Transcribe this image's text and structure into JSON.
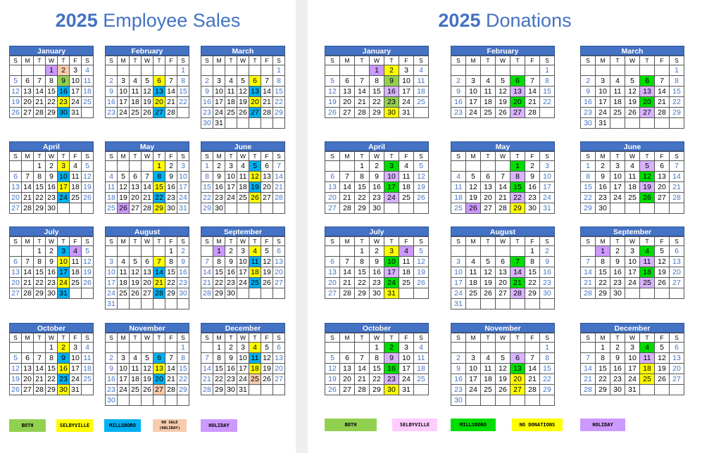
{
  "colors": {
    "both": "#92d050",
    "selbyville": "#ffff00",
    "millsboro": "#00b0f0",
    "no_sale": "#f8cbad",
    "holiday": "#cc99ff",
    "donation_green": "#00dd00",
    "donation_pink": "#ffccff",
    "lavender": "#d9b3ff",
    "header_blue": "#4472c4"
  },
  "weekday_letters": [
    "S",
    "M",
    "T",
    "W",
    "T",
    "F",
    "S"
  ],
  "left": {
    "title_year": "2025",
    "title_text": "Employee Sales",
    "legend": [
      {
        "label": "BOTH",
        "color": "#92d050"
      },
      {
        "label": "SELBYVILLE",
        "color": "#ffff00"
      },
      {
        "label": "MILLSBORO",
        "color": "#00b0f0"
      },
      {
        "label": "NO SALE (HOLIDAY)",
        "color": "#f8cbad"
      },
      {
        "label": "HOLIDAY",
        "color": "#cc99ff"
      }
    ],
    "months": [
      {
        "name": "January",
        "start": 3,
        "days": 31,
        "hl": {
          "1": "hol",
          "2": "ns",
          "9": "both",
          "16": "mil",
          "23": "sel",
          "30": "mil"
        }
      },
      {
        "name": "February",
        "start": 6,
        "days": 28,
        "hl": {
          "6": "sel",
          "13": "mil",
          "20": "sel",
          "27": "mil"
        }
      },
      {
        "name": "March",
        "start": 6,
        "days": 31,
        "hl": {
          "6": "sel",
          "13": "mil",
          "20": "sel",
          "27": "mil"
        }
      },
      {
        "name": "April",
        "start": 2,
        "days": 30,
        "hl": {
          "3": "sel",
          "10": "mil",
          "17": "sel",
          "24": "mil"
        }
      },
      {
        "name": "May",
        "start": 4,
        "days": 31,
        "hl": {
          "1": "sel",
          "8": "mil",
          "15": "sel",
          "22": "mil",
          "26": "hol",
          "29": "sel"
        }
      },
      {
        "name": "June",
        "start": 0,
        "days": 30,
        "hl": {
          "5": "mil",
          "12": "sel",
          "19": "mil",
          "26": "sel"
        }
      },
      {
        "name": "July",
        "start": 2,
        "days": 31,
        "hl": {
          "3": "mil",
          "4": "hol",
          "10": "sel",
          "17": "mil",
          "24": "sel",
          "31": "mil"
        }
      },
      {
        "name": "August",
        "start": 5,
        "days": 31,
        "hl": {
          "7": "sel",
          "14": "mil",
          "21": "sel",
          "28": "mil"
        }
      },
      {
        "name": "September",
        "start": 1,
        "days": 30,
        "hl": {
          "1": "hol",
          "4": "sel",
          "11": "mil",
          "18": "sel",
          "25": "mil"
        }
      },
      {
        "name": "October",
        "start": 3,
        "days": 31,
        "hl": {
          "2": "sel",
          "9": "mil",
          "16": "sel",
          "23": "mil",
          "30": "sel"
        }
      },
      {
        "name": "November",
        "start": 6,
        "days": 30,
        "hl": {
          "6": "mil",
          "13": "sel",
          "20": "mil",
          "27": "ns"
        }
      },
      {
        "name": "December",
        "start": 1,
        "days": 31,
        "hl": {
          "4": "sel",
          "11": "mil",
          "18": "sel",
          "25": "ns"
        }
      }
    ]
  },
  "right": {
    "title_year": "2025",
    "title_text": "Donations",
    "legend": [
      {
        "label": "BOTH",
        "color": "#92d050"
      },
      {
        "label": "SELBYVILLE",
        "color": "#ffccff"
      },
      {
        "label": "MILLSBORO",
        "color": "#00dd00"
      },
      {
        "label": "NO DONATIONS",
        "color": "#ffff00"
      },
      {
        "label": "HOLIDAY",
        "color": "#cc99ff"
      }
    ],
    "months": [
      {
        "name": "January",
        "start": 3,
        "days": 31,
        "hl": {
          "1": "hol",
          "2": "sel",
          "9": "both",
          "16": "lav",
          "23": "both",
          "30": "sel"
        }
      },
      {
        "name": "February",
        "start": 6,
        "days": 28,
        "hl": {
          "6": "dg",
          "13": "lav",
          "20": "dg",
          "27": "lav"
        }
      },
      {
        "name": "March",
        "start": 6,
        "days": 31,
        "hl": {
          "6": "dg",
          "13": "lav",
          "20": "dg",
          "27": "lav"
        }
      },
      {
        "name": "April",
        "start": 2,
        "days": 30,
        "hl": {
          "3": "dg",
          "10": "lav",
          "17": "dg",
          "24": "lav"
        }
      },
      {
        "name": "May",
        "start": 4,
        "days": 31,
        "hl": {
          "1": "dg",
          "8": "lav",
          "15": "dg",
          "22": "lav",
          "26": "hol",
          "29": "sel"
        }
      },
      {
        "name": "June",
        "start": 0,
        "days": 30,
        "hl": {
          "5": "lav",
          "12": "dg",
          "19": "lav",
          "26": "dg"
        }
      },
      {
        "name": "July",
        "start": 2,
        "days": 31,
        "hl": {
          "3": "sel",
          "4": "hol",
          "10": "dg",
          "17": "lav",
          "24": "dg",
          "31": "sel"
        }
      },
      {
        "name": "August",
        "start": 5,
        "days": 31,
        "hl": {
          "7": "dg",
          "14": "lav",
          "21": "dg",
          "28": "lav"
        }
      },
      {
        "name": "September",
        "start": 1,
        "days": 30,
        "hl": {
          "1": "hol",
          "4": "dg",
          "11": "lav",
          "18": "dg",
          "25": "lav"
        }
      },
      {
        "name": "October",
        "start": 3,
        "days": 31,
        "hl": {
          "2": "dg",
          "9": "lav",
          "16": "dg",
          "23": "lav",
          "30": "sel"
        }
      },
      {
        "name": "November",
        "start": 6,
        "days": 30,
        "hl": {
          "6": "lav",
          "13": "dg",
          "20": "sel",
          "27": "sel"
        }
      },
      {
        "name": "December",
        "start": 1,
        "days": 31,
        "hl": {
          "4": "dg",
          "11": "lav",
          "18": "sel",
          "25": "sel"
        }
      }
    ]
  }
}
